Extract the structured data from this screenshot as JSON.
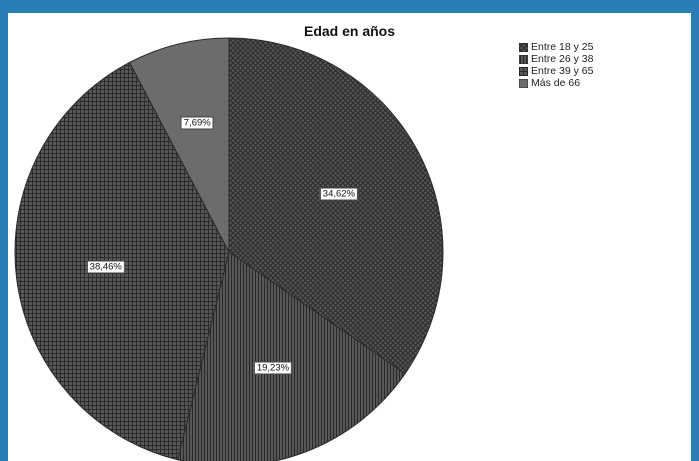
{
  "chart_data": {
    "type": "pie",
    "title": "Edad en años",
    "categories": [
      "Entre 18 y 25",
      "Entre 26 y 38",
      "Entre 39 y 65",
      "Más de 66"
    ],
    "values": [
      34.62,
      19.23,
      38.46,
      7.69
    ],
    "data_labels": [
      "34,62%",
      "19,23%",
      "38,46%",
      "7,69%"
    ],
    "legend_position": "top-right",
    "start_angle_deg": 0,
    "direction": "clockwise",
    "colors": [
      "#4a4a4a",
      "#404040",
      "#474747",
      "#6c6c6c"
    ],
    "patterns": [
      "crosshatch-diagonal",
      "vertical-lines",
      "grid",
      "solid"
    ]
  }
}
